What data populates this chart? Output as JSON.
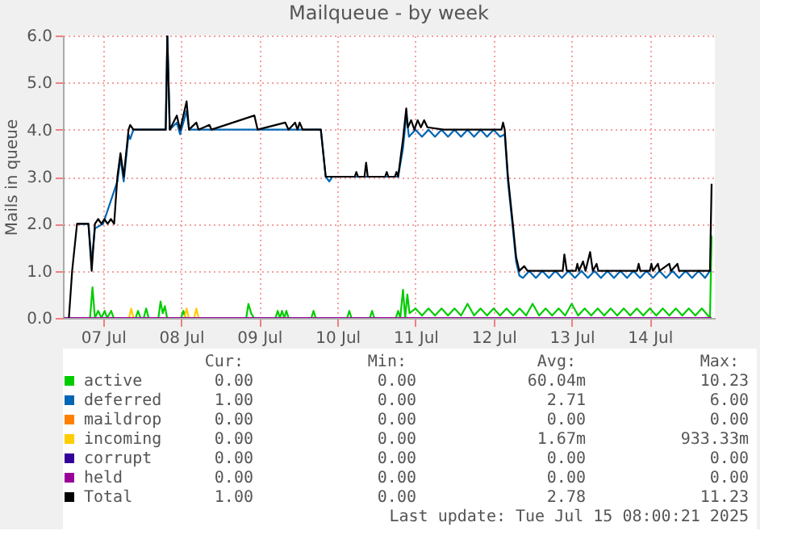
{
  "chart_data": {
    "type": "line",
    "title": "Mailqueue - by week",
    "ylabel": "Mails in queue",
    "xlim": [
      "2025-07-06T23:40",
      "2025-07-15T08:00"
    ],
    "xticks": [
      {
        "value": "2025-07-07T12:00",
        "label": "07 Jul"
      },
      {
        "value": "2025-07-08T12:00",
        "label": "08 Jul"
      },
      {
        "value": "2025-07-09T12:00",
        "label": "09 Jul"
      },
      {
        "value": "2025-07-10T12:00",
        "label": "10 Jul"
      },
      {
        "value": "2025-07-11T12:00",
        "label": "11 Jul"
      },
      {
        "value": "2025-07-12T12:00",
        "label": "12 Jul"
      },
      {
        "value": "2025-07-13T12:00",
        "label": "13 Jul"
      },
      {
        "value": "2025-07-14T12:00",
        "label": "14 Jul"
      }
    ],
    "ylim": [
      0,
      6
    ],
    "yticks": [
      {
        "value": 0,
        "label": "0.0"
      },
      {
        "value": 1,
        "label": "1.0"
      },
      {
        "value": 2,
        "label": "2.0"
      },
      {
        "value": 3,
        "label": "3.0"
      },
      {
        "value": 4,
        "label": "4.0"
      },
      {
        "value": 5,
        "label": "5.0"
      },
      {
        "value": 6,
        "label": "6.0"
      }
    ],
    "grid": true,
    "legend": "bottom",
    "series": [
      {
        "name": "active",
        "color": "#00cc00",
        "x": [
          "2025-07-07T00:00",
          "2025-07-07T08:00",
          "2025-07-07T08:45",
          "2025-07-07T09:30",
          "2025-07-07T10:30",
          "2025-07-07T11:30",
          "2025-07-07T12:30",
          "2025-07-07T13:15",
          "2025-07-07T14:30",
          "2025-07-07T15:15",
          "2025-07-07T22:00",
          "2025-07-07T22:45",
          "2025-07-07T23:30",
          "2025-07-08T00:30",
          "2025-07-08T01:15",
          "2025-07-08T02:00",
          "2025-07-08T05:00",
          "2025-07-08T05:40",
          "2025-07-08T06:20",
          "2025-07-08T07:00",
          "2025-07-08T07:40",
          "2025-07-08T12:00",
          "2025-07-08T12:40",
          "2025-07-08T13:20",
          "2025-07-09T08:00",
          "2025-07-09T08:40",
          "2025-07-09T09:30",
          "2025-07-09T10:20",
          "2025-07-09T17:00",
          "2025-07-09T17:40",
          "2025-07-09T18:20",
          "2025-07-09T19:00",
          "2025-07-09T19:40",
          "2025-07-09T20:20",
          "2025-07-09T21:00",
          "2025-07-10T04:00",
          "2025-07-10T04:40",
          "2025-07-10T05:20",
          "2025-07-10T15:00",
          "2025-07-10T15:40",
          "2025-07-10T16:20",
          "2025-07-10T22:00",
          "2025-07-10T22:40",
          "2025-07-10T23:20",
          "2025-07-11T06:00",
          "2025-07-11T06:40",
          "2025-07-11T07:20",
          "2025-07-11T08:10",
          "2025-07-11T08:50",
          "2025-07-11T09:30",
          "2025-07-11T10:10",
          "2025-07-11T12:00",
          "2025-07-11T14:00",
          "2025-07-11T16:00",
          "2025-07-11T18:00",
          "2025-07-11T20:00",
          "2025-07-11T22:00",
          "2025-07-12T00:00",
          "2025-07-12T02:00",
          "2025-07-12T04:00",
          "2025-07-12T06:00",
          "2025-07-12T08:00",
          "2025-07-12T10:00",
          "2025-07-12T12:00",
          "2025-07-12T14:00",
          "2025-07-12T16:00",
          "2025-07-12T18:00",
          "2025-07-12T20:00",
          "2025-07-12T22:00",
          "2025-07-13T00:00",
          "2025-07-13T02:00",
          "2025-07-13T04:00",
          "2025-07-13T06:00",
          "2025-07-13T08:00",
          "2025-07-13T10:00",
          "2025-07-13T12:00",
          "2025-07-13T14:00",
          "2025-07-13T16:00",
          "2025-07-13T18:00",
          "2025-07-13T20:00",
          "2025-07-13T22:00",
          "2025-07-14T00:00",
          "2025-07-14T02:00",
          "2025-07-14T04:00",
          "2025-07-14T06:00",
          "2025-07-14T08:00",
          "2025-07-14T10:00",
          "2025-07-14T12:00",
          "2025-07-14T14:00",
          "2025-07-14T16:00",
          "2025-07-14T18:00",
          "2025-07-14T20:00",
          "2025-07-14T22:00",
          "2025-07-15T00:00",
          "2025-07-15T02:00",
          "2025-07-15T04:00",
          "2025-07-15T06:30",
          "2025-07-15T07:00"
        ],
        "values": [
          0,
          0,
          0.65,
          0,
          0.15,
          0,
          0.15,
          0,
          0.15,
          0,
          0,
          0.15,
          0,
          0,
          0.2,
          0,
          0,
          0.35,
          0.1,
          0.25,
          0,
          0,
          0.15,
          0,
          0,
          0.3,
          0.1,
          0,
          0,
          0.15,
          0,
          0.15,
          0,
          0.15,
          0,
          0,
          0.15,
          0,
          0,
          0.15,
          0,
          0,
          0.15,
          0,
          0,
          0.15,
          0,
          0.6,
          0,
          0.5,
          0.1,
          0.2,
          0.05,
          0.2,
          0.05,
          0.2,
          0.05,
          0.2,
          0.05,
          0.3,
          0.05,
          0.2,
          0.05,
          0.2,
          0.05,
          0.2,
          0.05,
          0.2,
          0.05,
          0.3,
          0.05,
          0.2,
          0.05,
          0.2,
          0.05,
          0.3,
          0.05,
          0.2,
          0.05,
          0.2,
          0.05,
          0.2,
          0.05,
          0.2,
          0.05,
          0.2,
          0.05,
          0.2,
          0.05,
          0.2,
          0.05,
          0.2,
          0.05,
          0.2,
          0.05,
          0.2,
          0,
          1.75
        ]
      },
      {
        "name": "deferred",
        "color": "#0066b3",
        "x": [
          "2025-07-07T04:00",
          "2025-07-07T07:30",
          "2025-07-07T08:30",
          "2025-07-07T09:30",
          "2025-07-07T12:00",
          "2025-07-07T16:24",
          "2025-07-07T17:21",
          "2025-07-07T18:21",
          "2025-07-07T19:50",
          "2025-07-07T20:20",
          "2025-07-07T21:20",
          "2025-07-08T07:15",
          "2025-07-08T07:45",
          "2025-07-08T08:30",
          "2025-07-08T10:40",
          "2025-07-08T11:40",
          "2025-07-08T13:40",
          "2025-07-08T14:25",
          "2025-07-10T06:55",
          "2025-07-10T08:25",
          "2025-07-10T09:30",
          "2025-07-10T10:30",
          "2025-07-11T06:40",
          "2025-07-11T08:10",
          "2025-07-11T09:10",
          "2025-07-11T10:00",
          "2025-07-11T12:00",
          "2025-07-11T14:00",
          "2025-07-11T16:00",
          "2025-07-11T18:00",
          "2025-07-11T20:00",
          "2025-07-11T22:00",
          "2025-07-12T00:00",
          "2025-07-12T02:00",
          "2025-07-12T04:00",
          "2025-07-12T06:00",
          "2025-07-12T08:00",
          "2025-07-12T10:00",
          "2025-07-12T12:00",
          "2025-07-12T14:00",
          "2025-07-12T15:25",
          "2025-07-12T16:25",
          "2025-07-12T17:55",
          "2025-07-12T18:55",
          "2025-07-12T19:55",
          "2025-07-12T21:00",
          "2025-07-12T23:00",
          "2025-07-13T01:00",
          "2025-07-13T03:00",
          "2025-07-13T05:00",
          "2025-07-13T07:00",
          "2025-07-13T09:00",
          "2025-07-13T11:00",
          "2025-07-13T13:00",
          "2025-07-13T15:00",
          "2025-07-13T17:00",
          "2025-07-13T19:00",
          "2025-07-13T21:00",
          "2025-07-13T23:00",
          "2025-07-14T01:00",
          "2025-07-14T03:00",
          "2025-07-14T05:00",
          "2025-07-14T07:00",
          "2025-07-14T09:00",
          "2025-07-14T11:00",
          "2025-07-14T13:00",
          "2025-07-14T15:00",
          "2025-07-14T17:00",
          "2025-07-14T19:00",
          "2025-07-14T21:00",
          "2025-07-14T23:00",
          "2025-07-15T01:00",
          "2025-07-15T03:00",
          "2025-07-15T05:00",
          "2025-07-15T06:30",
          "2025-07-15T07:00"
        ],
        "values": [
          2.0,
          2.0,
          1.2,
          1.9,
          2.0,
          2.9,
          3.4,
          2.9,
          3.9,
          3.8,
          4.0,
          4.0,
          6.0,
          4.0,
          4.15,
          3.9,
          4.4,
          4.0,
          4.0,
          3.0,
          2.9,
          3.0,
          3.0,
          3.6,
          4.3,
          3.85,
          4.0,
          3.85,
          4.0,
          3.85,
          4.0,
          3.85,
          4.0,
          3.85,
          4.0,
          3.85,
          4.0,
          3.85,
          4.0,
          3.85,
          3.9,
          2.9,
          1.9,
          1.2,
          0.9,
          0.85,
          1.0,
          0.85,
          1.0,
          0.85,
          1.0,
          0.85,
          1.0,
          0.85,
          1.0,
          0.85,
          1.0,
          0.85,
          1.0,
          0.85,
          1.0,
          0.85,
          1.0,
          0.85,
          1.0,
          0.85,
          1.0,
          0.85,
          1.0,
          0.85,
          1.0,
          0.85,
          1.0,
          0.85,
          1.0,
          1.0
        ]
      },
      {
        "name": "maildrop",
        "color": "#ff8000"
      },
      {
        "name": "incoming",
        "color": "#ffcc00",
        "x": [
          "2025-07-07T20:00",
          "2025-07-07T20:40",
          "2025-07-07T21:20",
          "2025-07-08T00:00",
          "2025-07-08T13:00",
          "2025-07-08T13:40",
          "2025-07-08T14:20",
          "2025-07-08T15:00",
          "2025-07-08T16:00",
          "2025-07-08T16:40",
          "2025-07-08T17:20"
        ],
        "values": [
          0,
          0.2,
          0,
          null,
          0,
          0.2,
          0,
          null,
          0,
          0.2,
          0
        ]
      },
      {
        "name": "corrupt",
        "color": "#330099"
      },
      {
        "name": "held",
        "color": "#990099",
        "x": [
          "2025-07-07T00:00",
          "2025-07-15T07:00"
        ],
        "values": [
          0,
          0
        ]
      },
      {
        "name": "Total",
        "color": "#000000",
        "x": [
          "2025-07-07T01:30",
          "2025-07-07T02:30",
          "2025-07-07T04:00",
          "2025-07-07T07:30",
          "2025-07-07T08:30",
          "2025-07-07T09:30",
          "2025-07-07T10:30",
          "2025-07-07T11:30",
          "2025-07-07T12:24",
          "2025-07-07T13:24",
          "2025-07-07T14:24",
          "2025-07-07T15:24",
          "2025-07-07T16:24",
          "2025-07-07T17:21",
          "2025-07-07T18:21",
          "2025-07-07T19:50",
          "2025-07-07T20:20",
          "2025-07-07T21:20",
          "2025-07-08T07:15",
          "2025-07-08T07:45",
          "2025-07-08T08:30",
          "2025-07-08T10:40",
          "2025-07-08T11:40",
          "2025-07-08T13:40",
          "2025-07-08T14:25",
          "2025-07-08T16:40",
          "2025-07-08T17:20",
          "2025-07-08T20:40",
          "2025-07-08T21:20",
          "2025-07-09T10:30",
          "2025-07-09T11:30",
          "2025-07-09T20:00",
          "2025-07-09T21:00",
          "2025-07-09T23:00",
          "2025-07-09T23:45",
          "2025-07-10T00:25",
          "2025-07-10T01:20",
          "2025-07-10T06:55",
          "2025-07-10T08:25",
          "2025-07-10T17:20",
          "2025-07-10T17:50",
          "2025-07-10T18:20",
          "2025-07-10T20:20",
          "2025-07-10T20:50",
          "2025-07-10T21:20",
          "2025-07-11T02:40",
          "2025-07-11T03:10",
          "2025-07-11T03:40",
          "2025-07-11T05:40",
          "2025-07-11T06:10",
          "2025-07-11T06:40",
          "2025-07-11T08:10",
          "2025-07-11T09:10",
          "2025-07-11T09:40",
          "2025-07-11T10:40",
          "2025-07-11T11:40",
          "2025-07-11T12:40",
          "2025-07-11T13:40",
          "2025-07-11T14:40",
          "2025-07-11T15:40",
          "2025-07-11T20:35",
          "2025-07-12T14:25",
          "2025-07-12T14:55",
          "2025-07-12T15:25",
          "2025-07-12T16:25",
          "2025-07-12T17:55",
          "2025-07-12T18:55",
          "2025-07-12T19:55",
          "2025-07-12T21:25",
          "2025-07-12T22:25",
          "2025-07-13T09:15",
          "2025-07-13T09:45",
          "2025-07-13T10:30",
          "2025-07-13T13:15",
          "2025-07-13T13:45",
          "2025-07-13T14:15",
          "2025-07-13T15:30",
          "2025-07-13T16:15",
          "2025-07-13T17:40",
          "2025-07-13T18:30",
          "2025-07-13T19:40",
          "2025-07-13T20:10",
          "2025-07-14T08:05",
          "2025-07-14T08:35",
          "2025-07-14T09:05",
          "2025-07-14T12:00",
          "2025-07-14T12:30",
          "2025-07-14T13:00",
          "2025-07-14T14:30",
          "2025-07-14T15:00",
          "2025-07-14T18:00",
          "2025-07-14T18:30",
          "2025-07-14T20:30",
          "2025-07-14T21:00",
          "2025-07-15T06:30",
          "2025-07-15T07:00"
        ],
        "values": [
          0,
          1.0,
          2.0,
          2.0,
          1.0,
          2.0,
          2.1,
          2.0,
          2.1,
          2.0,
          2.1,
          2.0,
          3.0,
          3.5,
          3.0,
          4.0,
          4.1,
          4.0,
          4.0,
          6.0,
          4.0,
          4.3,
          4.0,
          4.6,
          4.0,
          4.15,
          4.0,
          4.1,
          4.0,
          4.3,
          4.0,
          4.15,
          4.0,
          4.15,
          4.0,
          4.15,
          4.0,
          4.0,
          3.0,
          3.0,
          3.1,
          3.0,
          3.0,
          3.3,
          3.0,
          3.0,
          3.1,
          3.0,
          3.0,
          3.1,
          3.0,
          3.8,
          4.45,
          4.05,
          4.2,
          4.0,
          4.2,
          4.05,
          4.2,
          4.05,
          4.0,
          4.0,
          4.15,
          4.0,
          3.0,
          2.0,
          1.3,
          1.0,
          1.1,
          1.0,
          1.0,
          1.35,
          1.0,
          1.0,
          1.15,
          1.0,
          1.2,
          1.0,
          1.4,
          1.0,
          1.15,
          1.0,
          1.0,
          1.15,
          1.0,
          1.0,
          1.15,
          1.0,
          1.15,
          1.0,
          1.15,
          1.0,
          1.15,
          1.0,
          1.0,
          2.85
        ]
      }
    ],
    "annotations": [
      "Cur:",
      "Min:",
      "Avg:",
      "Max:",
      "0.00",
      "0.00",
      "60.04m",
      "10.23",
      "1.00",
      "0.00",
      "2.71",
      "6.00",
      "0.00",
      "0.00",
      "0.00",
      "0.00",
      "0.00",
      "0.00",
      "1.67m",
      "933.33m",
      "0.00",
      "0.00",
      "0.00",
      "0.00",
      "0.00",
      "0.00",
      "0.00",
      "0.00",
      "1.00",
      "0.00",
      "2.78",
      "11.23",
      "Last update: Tue Jul 15 08:00:21 2025"
    ]
  }
}
